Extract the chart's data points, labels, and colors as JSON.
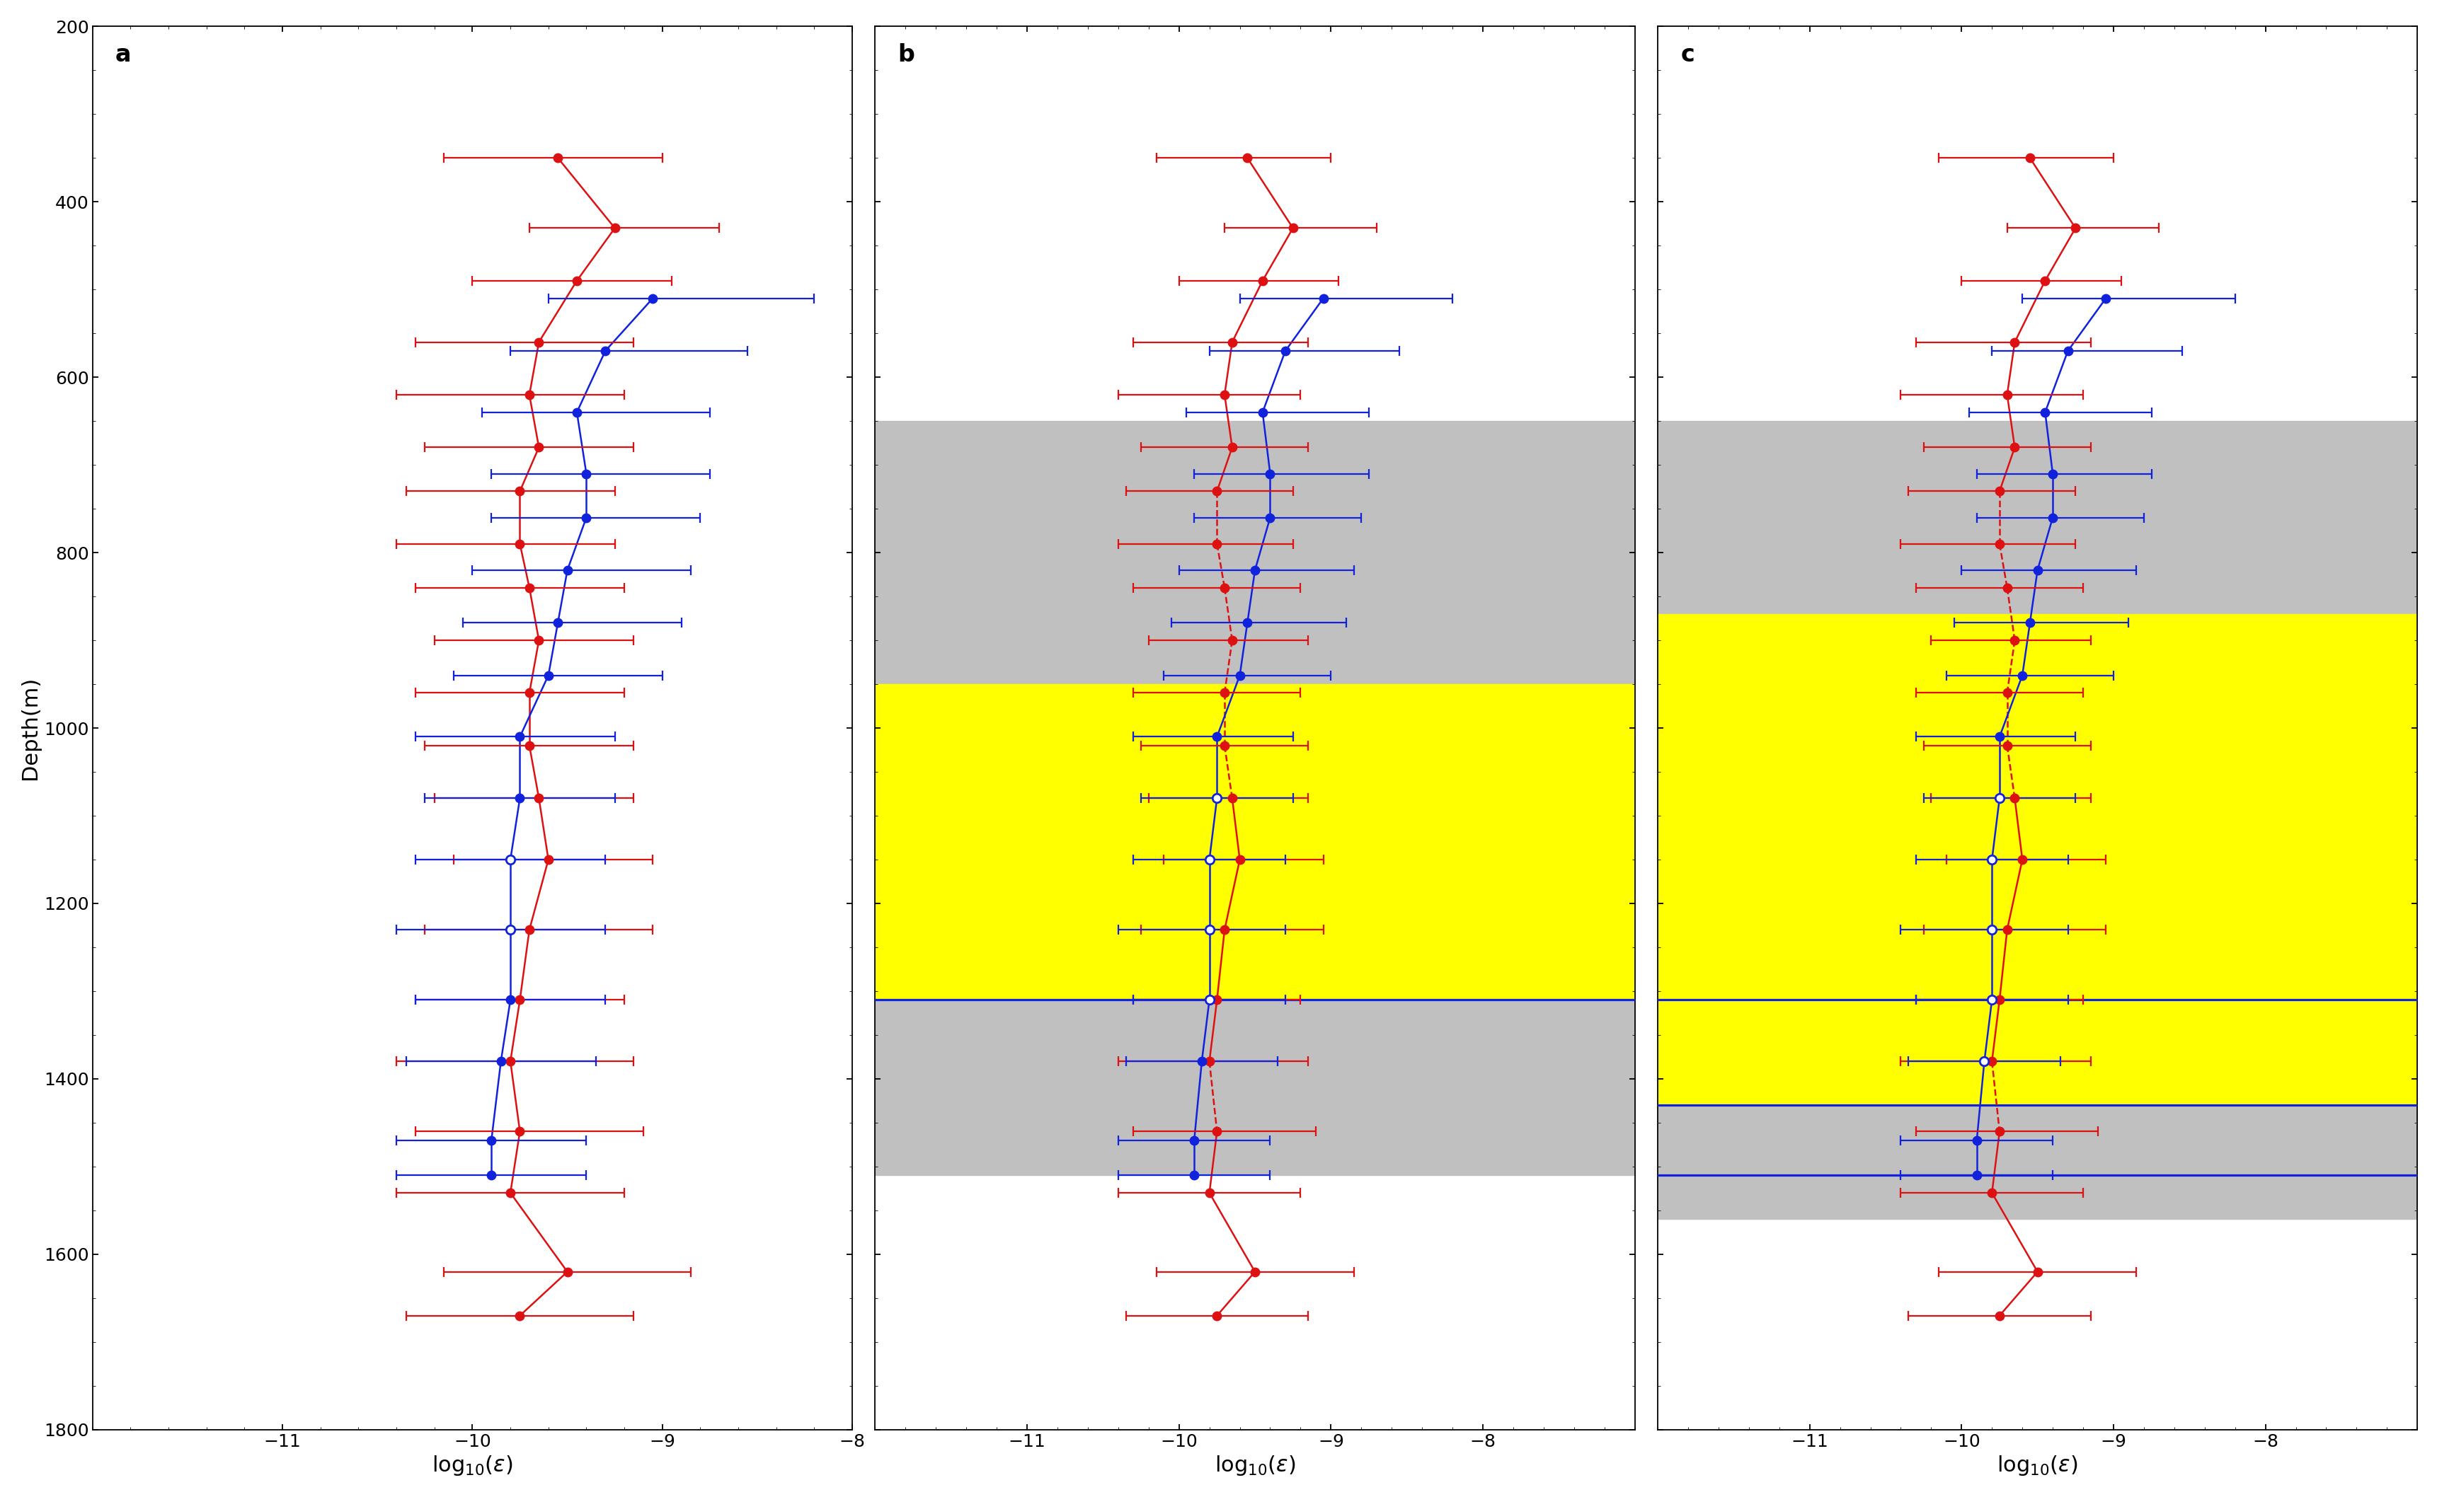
{
  "panel_a": {
    "label": "a",
    "xlim": [
      -12,
      -8
    ],
    "xticks": [
      -11,
      -10,
      -9,
      -8
    ],
    "red": {
      "depths": [
        350,
        430,
        490,
        560,
        620,
        680,
        730,
        790,
        840,
        900,
        960,
        1020,
        1080,
        1150,
        1230,
        1310,
        1380,
        1460,
        1530,
        1620,
        1670
      ],
      "values": [
        -9.55,
        -9.25,
        -9.45,
        -9.65,
        -9.7,
        -9.65,
        -9.75,
        -9.75,
        -9.7,
        -9.65,
        -9.7,
        -9.7,
        -9.65,
        -9.6,
        -9.7,
        -9.75,
        -9.8,
        -9.75,
        -9.8,
        -9.5,
        -9.75
      ],
      "err_left": [
        0.6,
        0.45,
        0.55,
        0.65,
        0.7,
        0.6,
        0.6,
        0.65,
        0.6,
        0.55,
        0.6,
        0.55,
        0.55,
        0.5,
        0.55,
        0.55,
        0.6,
        0.55,
        0.6,
        0.65,
        0.6
      ],
      "err_right": [
        0.55,
        0.55,
        0.5,
        0.5,
        0.5,
        0.5,
        0.5,
        0.5,
        0.5,
        0.5,
        0.5,
        0.55,
        0.5,
        0.55,
        0.65,
        0.55,
        0.65,
        0.65,
        0.6,
        0.65,
        0.6
      ],
      "open_markers": [],
      "dashed_depths": []
    },
    "blue": {
      "depths": [
        510,
        570,
        640,
        710,
        760,
        820,
        880,
        940,
        1010,
        1080,
        1150,
        1230,
        1310,
        1380,
        1470,
        1510
      ],
      "values": [
        -9.05,
        -9.3,
        -9.45,
        -9.4,
        -9.4,
        -9.5,
        -9.55,
        -9.6,
        -9.75,
        -9.75,
        -9.8,
        -9.8,
        -9.8,
        -9.85,
        -9.9,
        -9.9
      ],
      "err_left": [
        0.55,
        0.5,
        0.5,
        0.5,
        0.5,
        0.5,
        0.5,
        0.5,
        0.55,
        0.5,
        0.5,
        0.6,
        0.5,
        0.5,
        0.5,
        0.5
      ],
      "err_right": [
        0.85,
        0.75,
        0.7,
        0.65,
        0.6,
        0.65,
        0.65,
        0.6,
        0.5,
        0.5,
        0.5,
        0.5,
        0.5,
        0.5,
        0.5,
        0.5
      ],
      "open_markers": [
        1150,
        1230
      ],
      "dashed_depths": []
    },
    "shading": null,
    "hlines_blue": []
  },
  "panel_b": {
    "label": "b",
    "xlim": [
      -12,
      -7
    ],
    "xticks": [
      -11,
      -10,
      -9,
      -8
    ],
    "red": {
      "depths": [
        350,
        430,
        490,
        560,
        620,
        680,
        730,
        790,
        840,
        900,
        960,
        1020,
        1080,
        1150,
        1230,
        1310,
        1380,
        1460,
        1530,
        1620,
        1670
      ],
      "values": [
        -9.55,
        -9.25,
        -9.45,
        -9.65,
        -9.7,
        -9.65,
        -9.75,
        -9.75,
        -9.7,
        -9.65,
        -9.7,
        -9.7,
        -9.65,
        -9.6,
        -9.7,
        -9.75,
        -9.8,
        -9.75,
        -9.8,
        -9.5,
        -9.75
      ],
      "err_left": [
        0.6,
        0.45,
        0.55,
        0.65,
        0.7,
        0.6,
        0.6,
        0.65,
        0.6,
        0.55,
        0.6,
        0.55,
        0.55,
        0.5,
        0.55,
        0.55,
        0.6,
        0.55,
        0.6,
        0.65,
        0.6
      ],
      "err_right": [
        0.55,
        0.55,
        0.5,
        0.5,
        0.5,
        0.5,
        0.5,
        0.5,
        0.5,
        0.5,
        0.5,
        0.55,
        0.5,
        0.55,
        0.65,
        0.55,
        0.65,
        0.65,
        0.6,
        0.65,
        0.6
      ],
      "open_markers": [],
      "dashed_depths": [
        730,
        790,
        840,
        900,
        960,
        1020,
        1080,
        1380,
        1460
      ]
    },
    "blue": {
      "depths": [
        510,
        570,
        640,
        710,
        760,
        820,
        880,
        940,
        1010,
        1080,
        1150,
        1230,
        1310,
        1380,
        1470,
        1510
      ],
      "values": [
        -9.05,
        -9.3,
        -9.45,
        -9.4,
        -9.4,
        -9.5,
        -9.55,
        -9.6,
        -9.75,
        -9.75,
        -9.8,
        -9.8,
        -9.8,
        -9.85,
        -9.9,
        -9.9
      ],
      "err_left": [
        0.55,
        0.5,
        0.5,
        0.5,
        0.5,
        0.5,
        0.5,
        0.5,
        0.55,
        0.5,
        0.5,
        0.6,
        0.5,
        0.5,
        0.5,
        0.5
      ],
      "err_right": [
        0.85,
        0.75,
        0.7,
        0.65,
        0.6,
        0.65,
        0.65,
        0.6,
        0.5,
        0.5,
        0.5,
        0.5,
        0.5,
        0.5,
        0.5,
        0.5
      ],
      "open_markers": [
        1080,
        1150,
        1230,
        1310
      ],
      "dashed_depths": []
    },
    "shading": {
      "gray": [
        650,
        1510
      ],
      "yellow": [
        950,
        1310
      ]
    },
    "hlines_blue": [
      1310
    ]
  },
  "panel_c": {
    "label": "c",
    "xlim": [
      -12,
      -7
    ],
    "xticks": [
      -11,
      -10,
      -9,
      -8
    ],
    "red": {
      "depths": [
        350,
        430,
        490,
        560,
        620,
        680,
        730,
        790,
        840,
        900,
        960,
        1020,
        1080,
        1150,
        1230,
        1310,
        1380,
        1460,
        1530,
        1620,
        1670
      ],
      "values": [
        -9.55,
        -9.25,
        -9.45,
        -9.65,
        -9.7,
        -9.65,
        -9.75,
        -9.75,
        -9.7,
        -9.65,
        -9.7,
        -9.7,
        -9.65,
        -9.6,
        -9.7,
        -9.75,
        -9.8,
        -9.75,
        -9.8,
        -9.5,
        -9.75
      ],
      "err_left": [
        0.6,
        0.45,
        0.55,
        0.65,
        0.7,
        0.6,
        0.6,
        0.65,
        0.6,
        0.55,
        0.6,
        0.55,
        0.55,
        0.5,
        0.55,
        0.55,
        0.6,
        0.55,
        0.6,
        0.65,
        0.6
      ],
      "err_right": [
        0.55,
        0.55,
        0.5,
        0.5,
        0.5,
        0.5,
        0.5,
        0.5,
        0.5,
        0.5,
        0.5,
        0.55,
        0.5,
        0.55,
        0.65,
        0.55,
        0.65,
        0.65,
        0.6,
        0.65,
        0.6
      ],
      "open_markers": [],
      "dashed_depths": [
        730,
        790,
        840,
        900,
        960,
        1020,
        1080,
        1380,
        1460
      ]
    },
    "blue": {
      "depths": [
        510,
        570,
        640,
        710,
        760,
        820,
        880,
        940,
        1010,
        1080,
        1150,
        1230,
        1310,
        1380,
        1470,
        1510
      ],
      "values": [
        -9.05,
        -9.3,
        -9.45,
        -9.4,
        -9.4,
        -9.5,
        -9.55,
        -9.6,
        -9.75,
        -9.75,
        -9.8,
        -9.8,
        -9.8,
        -9.85,
        -9.9,
        -9.9
      ],
      "err_left": [
        0.55,
        0.5,
        0.5,
        0.5,
        0.5,
        0.5,
        0.5,
        0.5,
        0.55,
        0.5,
        0.5,
        0.6,
        0.5,
        0.5,
        0.5,
        0.5
      ],
      "err_right": [
        0.85,
        0.75,
        0.7,
        0.65,
        0.6,
        0.65,
        0.65,
        0.6,
        0.5,
        0.5,
        0.5,
        0.5,
        0.5,
        0.5,
        0.5,
        0.5
      ],
      "open_markers": [
        1080,
        1150,
        1230,
        1310,
        1380
      ],
      "dashed_depths": []
    },
    "shading": {
      "gray": [
        650,
        1560
      ],
      "yellow": [
        870,
        1430
      ]
    },
    "hlines_blue": [
      1310,
      1430,
      1510
    ]
  },
  "ylim": [
    1800,
    200
  ],
  "yticks": [
    200,
    400,
    600,
    800,
    1000,
    1200,
    1400,
    1600,
    1800
  ],
  "ylabel": "Depth(m)",
  "xlabel": "log$_{10}$($\\epsilon$)",
  "red_color": "#dd1111",
  "blue_color": "#1122dd",
  "gray_color": "#c0c0c0",
  "yellow_color": "#ffff00",
  "marker_size": 9,
  "line_width": 1.8,
  "cap_size": 5,
  "error_lw": 1.6
}
